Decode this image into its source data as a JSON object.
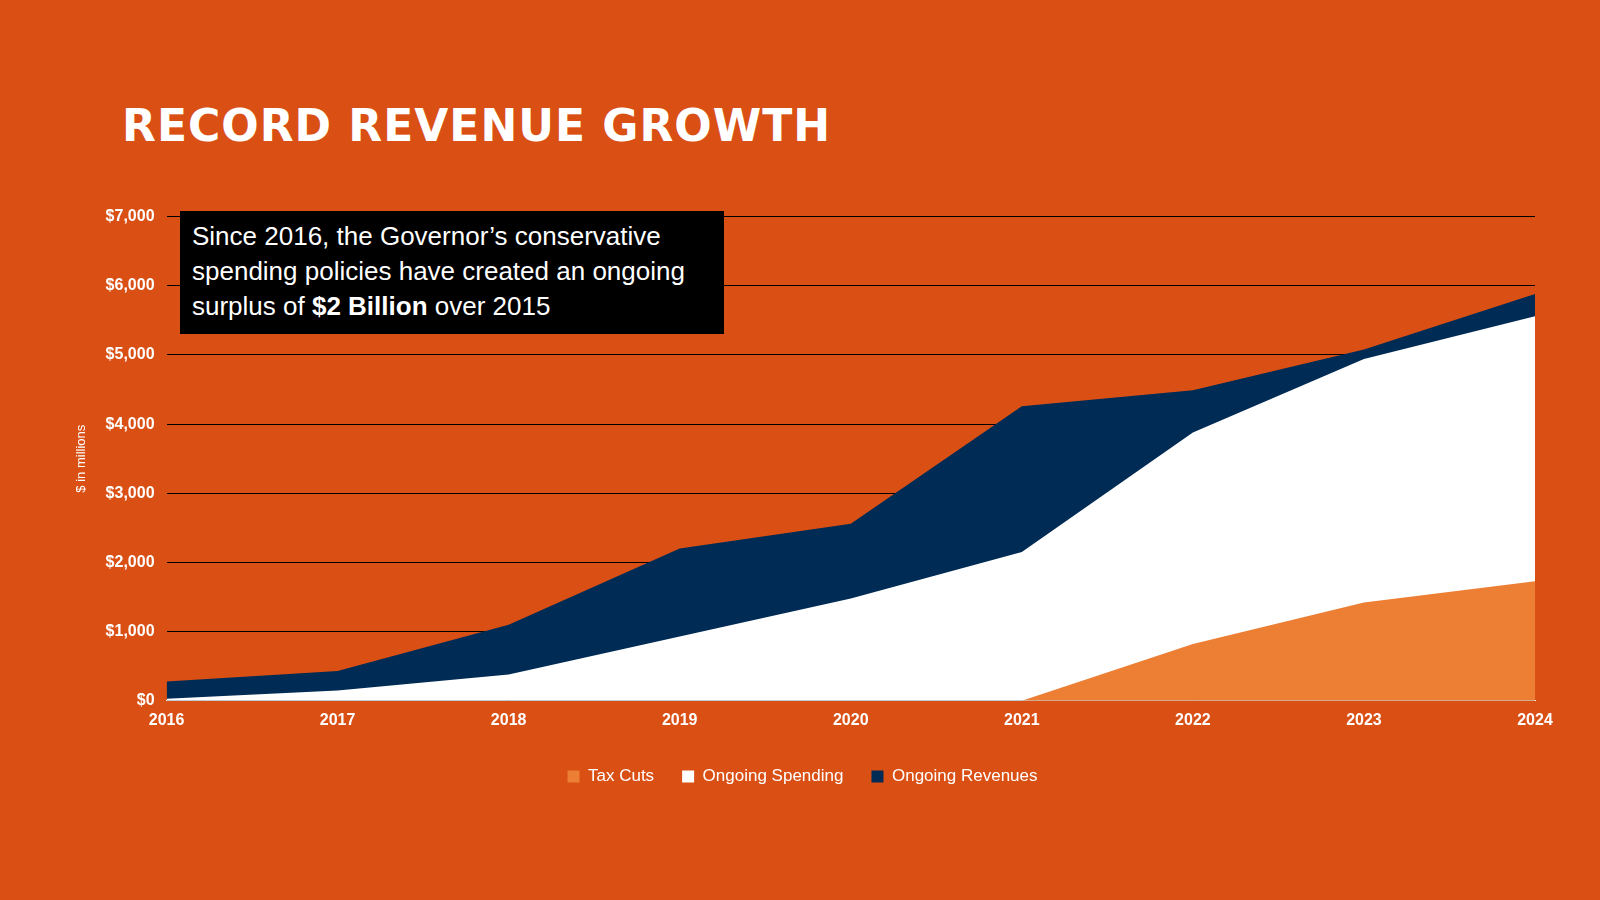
{
  "chart_data": {
    "type": "area",
    "title": "RECORD REVENUE GROWTH",
    "y_label": "$ in millions",
    "annotation": [
      "Since 2016, the Governor’s conservative spending policies have created an ongoing surplus of ",
      "$2 Billion",
      " over 2015"
    ],
    "categories": [
      "2016",
      "2017",
      "2018",
      "2019",
      "2020",
      "2021",
      "2022",
      "2023",
      "2024"
    ],
    "series": [
      {
        "name": "Ongoing Revenues",
        "color": "#002B54",
        "values": [
          280,
          430,
          1100,
          2200,
          2560,
          4260,
          4490,
          5080,
          5880
        ]
      },
      {
        "name": "Ongoing Spending",
        "color": "#FFFFFF",
        "values": [
          30,
          150,
          380,
          930,
          1480,
          2150,
          3880,
          4940,
          5560
        ]
      },
      {
        "name": "Tax Cuts",
        "color": "#EC7F34",
        "values": [
          null,
          null,
          null,
          null,
          null,
          0,
          820,
          1420,
          1730
        ]
      }
    ],
    "ylim": [
      0,
      7000
    ],
    "yticks": [
      {
        "value": 0,
        "label": "$0"
      },
      {
        "value": 1000,
        "label": "$1,000"
      },
      {
        "value": 2000,
        "label": "$2,000"
      },
      {
        "value": 3000,
        "label": "$3,000"
      },
      {
        "value": 4000,
        "label": "$4,000"
      },
      {
        "value": 5000,
        "label": "$5,000"
      },
      {
        "value": 6000,
        "label": "$6,000"
      },
      {
        "value": 7000,
        "label": "$7,000"
      }
    ],
    "grid": true,
    "stacked": false,
    "legend": "bottom"
  }
}
